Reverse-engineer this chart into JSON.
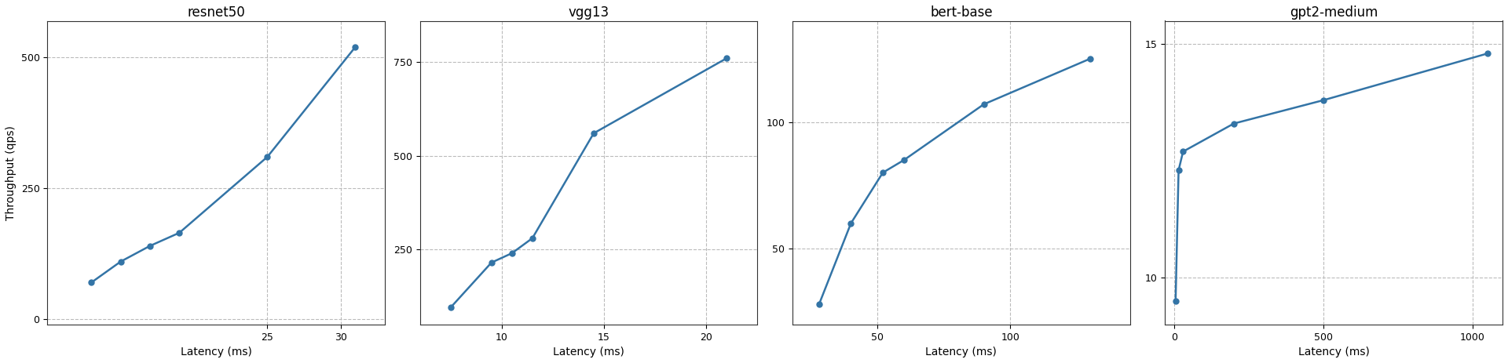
{
  "subplots": [
    {
      "title": "resnet50",
      "latency": [
        13,
        15,
        17,
        19,
        25,
        31
      ],
      "throughput": [
        70,
        110,
        140,
        165,
        310,
        520
      ],
      "xlabel": "Latency (ms)",
      "xlim": [
        10,
        33
      ],
      "ylim": [
        -10,
        570
      ],
      "yticks": [
        0,
        250,
        500
      ],
      "xticks": [
        25,
        30
      ]
    },
    {
      "title": "vgg13",
      "latency": [
        7.5,
        9.5,
        10.5,
        11.5,
        14.5,
        21.0
      ],
      "throughput": [
        95,
        215,
        240,
        280,
        560,
        760
      ],
      "xlabel": "Latency (ms)",
      "xlim": [
        6.0,
        22.5
      ],
      "ylim": [
        50,
        860
      ],
      "yticks": [
        250,
        500,
        750
      ],
      "xticks": [
        10,
        15,
        20
      ]
    },
    {
      "title": "bert-base",
      "latency": [
        28,
        40,
        52,
        60,
        90,
        130
      ],
      "throughput": [
        28,
        60,
        80,
        85,
        107,
        125
      ],
      "xlabel": "Latency (ms)",
      "xlim": [
        18,
        145
      ],
      "ylim": [
        20,
        140
      ],
      "yticks": [
        50,
        100
      ],
      "xticks": [
        50,
        100
      ]
    },
    {
      "title": "gpt2-medium",
      "latency": [
        5,
        15,
        30,
        200,
        500,
        1050
      ],
      "throughput": [
        9.5,
        12.3,
        12.7,
        13.3,
        13.8,
        14.8
      ],
      "xlabel": "Latency (ms)",
      "xlim": [
        -30,
        1100
      ],
      "ylim": [
        9.0,
        15.5
      ],
      "yticks": [
        10,
        15
      ],
      "xticks": [
        0,
        500,
        1000
      ]
    }
  ],
  "ylabel": "Throughput (qps)",
  "line_color": "#3374a6",
  "marker": "o",
  "markersize": 5,
  "linewidth": 1.8,
  "grid_color": "#bbbbbb",
  "grid_style": "--",
  "grid_alpha": 1.0,
  "title_fontsize": 12,
  "label_fontsize": 10,
  "tick_fontsize": 9,
  "background_color": "#ffffff"
}
